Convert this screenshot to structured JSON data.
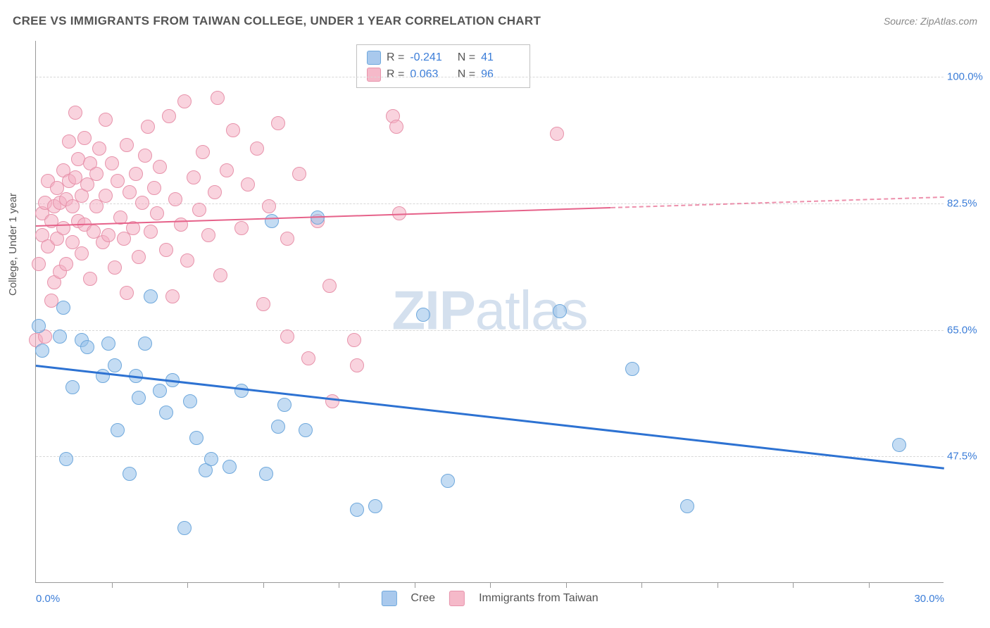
{
  "title": "CREE VS IMMIGRANTS FROM TAIWAN COLLEGE, UNDER 1 YEAR CORRELATION CHART",
  "source": "Source: ZipAtlas.com",
  "ylabel": "College, Under 1 year",
  "watermark_bold": "ZIP",
  "watermark_rest": "atlas",
  "chart": {
    "type": "scatter",
    "background_color": "#ffffff",
    "grid_color": "#d8d8d8",
    "axis_color": "#999999",
    "tick_label_color": "#3b7dd8",
    "x_domain": [
      0,
      30
    ],
    "y_domain": [
      30,
      105
    ],
    "y_ticks": [
      {
        "v": 47.5,
        "label": "47.5%"
      },
      {
        "v": 65.0,
        "label": "65.0%"
      },
      {
        "v": 82.5,
        "label": "82.5%"
      },
      {
        "v": 100.0,
        "label": "100.0%"
      }
    ],
    "x_major_ticks": [
      0,
      30
    ],
    "x_minor_ticks": [
      2.5,
      5,
      7.5,
      10,
      12.5,
      15,
      17.5,
      20,
      22.5,
      25,
      27.5
    ],
    "x_labels": [
      {
        "v": 0,
        "label": "0.0%"
      },
      {
        "v": 30,
        "label": "30.0%"
      }
    ],
    "series": [
      {
        "name": "Cree",
        "fill": "rgba(148,192,234,0.55)",
        "stroke": "#6fa8dc",
        "marker_radius": 10,
        "legend_swatch_fill": "#a9c9ed",
        "legend_swatch_stroke": "#6fa8dc",
        "trend": {
          "x1": 0,
          "y1": 60.2,
          "x2": 30,
          "y2": 46.0,
          "color": "#2d72d2",
          "width": 2.5,
          "dashed_after_x": null
        },
        "R": "-0.241",
        "N": "41",
        "points": [
          [
            0.1,
            65.5
          ],
          [
            0.2,
            62.0
          ],
          [
            0.8,
            64.0
          ],
          [
            0.9,
            68.0
          ],
          [
            1.0,
            47.0
          ],
          [
            1.2,
            57.0
          ],
          [
            1.5,
            63.5
          ],
          [
            1.7,
            62.5
          ],
          [
            2.2,
            58.5
          ],
          [
            2.4,
            63.0
          ],
          [
            2.6,
            60.0
          ],
          [
            2.7,
            51.0
          ],
          [
            3.1,
            45.0
          ],
          [
            3.3,
            58.5
          ],
          [
            3.4,
            55.5
          ],
          [
            3.6,
            63.0
          ],
          [
            3.8,
            69.5
          ],
          [
            4.1,
            56.5
          ],
          [
            4.3,
            53.5
          ],
          [
            4.5,
            58.0
          ],
          [
            4.9,
            37.5
          ],
          [
            5.1,
            55.0
          ],
          [
            5.3,
            50.0
          ],
          [
            5.6,
            45.5
          ],
          [
            5.8,
            47.0
          ],
          [
            6.4,
            46.0
          ],
          [
            6.8,
            56.5
          ],
          [
            7.6,
            45.0
          ],
          [
            7.8,
            80.0
          ],
          [
            8.0,
            51.5
          ],
          [
            8.2,
            54.5
          ],
          [
            8.9,
            51.0
          ],
          [
            9.3,
            80.5
          ],
          [
            10.6,
            40.0
          ],
          [
            11.2,
            40.5
          ],
          [
            12.8,
            67.0
          ],
          [
            13.6,
            44.0
          ],
          [
            17.3,
            67.5
          ],
          [
            19.7,
            59.5
          ],
          [
            21.5,
            40.5
          ],
          [
            28.5,
            49.0
          ]
        ]
      },
      {
        "name": "Immigrants from Taiwan",
        "fill": "rgba(244,175,195,0.55)",
        "stroke": "#e793ab",
        "marker_radius": 10,
        "legend_swatch_fill": "#f5b9c9",
        "legend_swatch_stroke": "#e793ab",
        "trend": {
          "x1": 0,
          "y1": 79.5,
          "x2": 30,
          "y2": 83.5,
          "color": "#e6628a",
          "width": 2.2,
          "dashed_after_x": 19
        },
        "R": "0.063",
        "N": "96",
        "points": [
          [
            0.0,
            63.5
          ],
          [
            0.1,
            74.0
          ],
          [
            0.2,
            78.0
          ],
          [
            0.2,
            81.0
          ],
          [
            0.3,
            64.0
          ],
          [
            0.3,
            82.5
          ],
          [
            0.4,
            76.5
          ],
          [
            0.4,
            85.5
          ],
          [
            0.5,
            69.0
          ],
          [
            0.5,
            80.0
          ],
          [
            0.6,
            71.5
          ],
          [
            0.6,
            82.0
          ],
          [
            0.7,
            77.5
          ],
          [
            0.7,
            84.5
          ],
          [
            0.8,
            73.0
          ],
          [
            0.8,
            82.5
          ],
          [
            0.9,
            79.0
          ],
          [
            0.9,
            87.0
          ],
          [
            1.0,
            74.0
          ],
          [
            1.0,
            83.0
          ],
          [
            1.1,
            85.5
          ],
          [
            1.1,
            91.0
          ],
          [
            1.2,
            77.0
          ],
          [
            1.2,
            82.0
          ],
          [
            1.3,
            86.0
          ],
          [
            1.3,
            95.0
          ],
          [
            1.4,
            80.0
          ],
          [
            1.4,
            88.5
          ],
          [
            1.5,
            75.5
          ],
          [
            1.5,
            83.5
          ],
          [
            1.6,
            79.5
          ],
          [
            1.6,
            91.5
          ],
          [
            1.7,
            85.0
          ],
          [
            1.8,
            72.0
          ],
          [
            1.8,
            88.0
          ],
          [
            1.9,
            78.5
          ],
          [
            2.0,
            82.0
          ],
          [
            2.0,
            86.5
          ],
          [
            2.1,
            90.0
          ],
          [
            2.2,
            77.0
          ],
          [
            2.3,
            83.5
          ],
          [
            2.3,
            94.0
          ],
          [
            2.4,
            78.0
          ],
          [
            2.5,
            88.0
          ],
          [
            2.6,
            73.5
          ],
          [
            2.7,
            85.5
          ],
          [
            2.8,
            80.5
          ],
          [
            2.9,
            77.5
          ],
          [
            3.0,
            90.5
          ],
          [
            3.0,
            70.0
          ],
          [
            3.1,
            84.0
          ],
          [
            3.2,
            79.0
          ],
          [
            3.3,
            86.5
          ],
          [
            3.4,
            75.0
          ],
          [
            3.5,
            82.5
          ],
          [
            3.6,
            89.0
          ],
          [
            3.7,
            93.0
          ],
          [
            3.8,
            78.5
          ],
          [
            3.9,
            84.5
          ],
          [
            4.0,
            81.0
          ],
          [
            4.1,
            87.5
          ],
          [
            4.3,
            76.0
          ],
          [
            4.4,
            94.5
          ],
          [
            4.5,
            69.5
          ],
          [
            4.6,
            83.0
          ],
          [
            4.8,
            79.5
          ],
          [
            4.9,
            96.5
          ],
          [
            5.0,
            74.5
          ],
          [
            5.2,
            86.0
          ],
          [
            5.4,
            81.5
          ],
          [
            5.5,
            89.5
          ],
          [
            5.7,
            78.0
          ],
          [
            5.9,
            84.0
          ],
          [
            6.0,
            97.0
          ],
          [
            6.1,
            72.5
          ],
          [
            6.3,
            87.0
          ],
          [
            6.5,
            92.5
          ],
          [
            6.8,
            79.0
          ],
          [
            7.0,
            85.0
          ],
          [
            7.3,
            90.0
          ],
          [
            7.5,
            68.5
          ],
          [
            7.7,
            82.0
          ],
          [
            8.0,
            93.5
          ],
          [
            8.3,
            77.5
          ],
          [
            8.3,
            64.0
          ],
          [
            8.7,
            86.5
          ],
          [
            9.0,
            61.0
          ],
          [
            9.3,
            80.0
          ],
          [
            9.7,
            71.0
          ],
          [
            9.8,
            55.0
          ],
          [
            10.5,
            63.5
          ],
          [
            10.6,
            60.0
          ],
          [
            11.8,
            94.5
          ],
          [
            11.9,
            93.0
          ],
          [
            12.0,
            81.0
          ],
          [
            17.2,
            92.0
          ]
        ]
      }
    ]
  },
  "legend_bottom": [
    {
      "label": "Cree",
      "fill": "#a9c9ed",
      "stroke": "#6fa8dc"
    },
    {
      "label": "Immigrants from Taiwan",
      "fill": "#f5b9c9",
      "stroke": "#e793ab"
    }
  ]
}
